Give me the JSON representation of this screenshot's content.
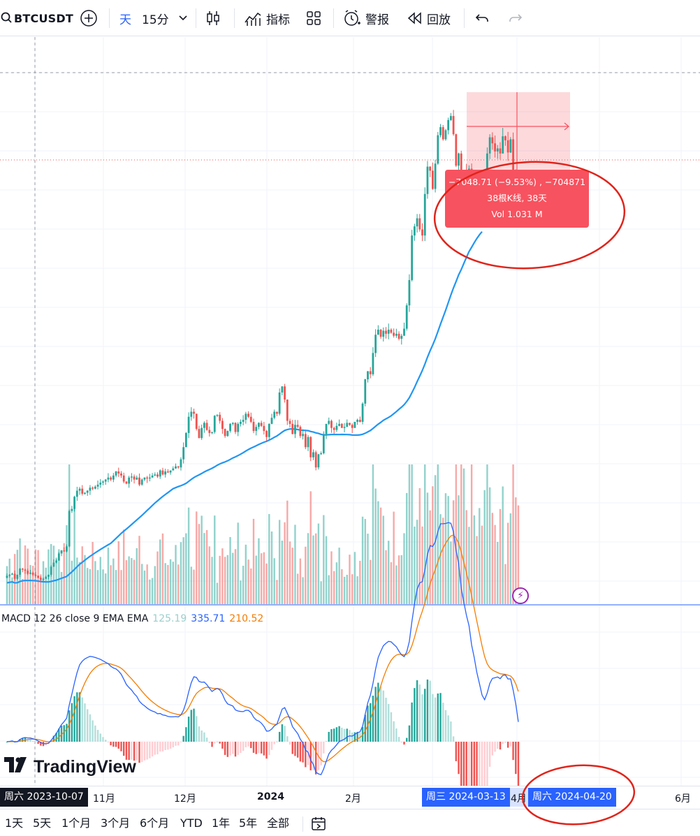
{
  "toolbar": {
    "symbol": "BTCUSDT",
    "interval_day": "天",
    "interval_selected": "15分",
    "indicators_label": "指标",
    "alert_label": "警报",
    "replay_label": "回放"
  },
  "colors": {
    "up": "#26a69a",
    "down": "#ef5350",
    "ma_line": "#2196f3",
    "macd_line": "#2962ff",
    "signal_line": "#f57c00",
    "measure_fill": "#f7525f",
    "annotation": "#e0241b"
  },
  "measure_tooltip": {
    "line1": "−7048.71 (−9.53%) , −704871",
    "line2": "38根K线, 38天",
    "line3": "Vol 1.031 M"
  },
  "macd_legend": {
    "name": "MACD 12 26 close 9 EMA EMA",
    "histogram": "125.19",
    "macd": "335.71",
    "signal": "210.52"
  },
  "logo_text": "TradingView",
  "time_axis": {
    "cursor_date": "周六 2023-10-07",
    "labels": [
      "11月",
      "12月",
      "2024",
      "2月",
      "4月",
      "6月"
    ],
    "range_start": "周三 2024-03-13",
    "range_end": "周六 2024-04-20"
  },
  "range_buttons": [
    "1天",
    "5天",
    "1个月",
    "3个月",
    "6个月",
    "YTD",
    "1年",
    "5年",
    "全部"
  ],
  "chart_data": {
    "type": "candlestick",
    "symbol": "BTCUSDT",
    "x_range": [
      "2023-10-07",
      "2024-04-20"
    ],
    "closes": [
      27800,
      27900,
      28000,
      27500,
      27900,
      28500,
      28400,
      28300,
      28000,
      28100,
      27900,
      27800,
      27600,
      27400,
      27500,
      27700,
      27900,
      28700,
      29100,
      29300,
      30000,
      30300,
      30200,
      30700,
      34200,
      34400,
      35600,
      36200,
      36400,
      35900,
      36000,
      36200,
      36500,
      36400,
      36600,
      36800,
      37000,
      37100,
      37300,
      37500,
      37300,
      37700,
      38100,
      37900,
      37700,
      37100,
      36900,
      37500,
      37600,
      37300,
      37500,
      36800,
      37300,
      37500,
      37400,
      37500,
      37700,
      37800,
      37600,
      38200,
      37800,
      38100,
      38000,
      38200,
      38400,
      38600,
      38500,
      39300,
      40500,
      41900,
      43500,
      44000,
      43800,
      42300,
      41400,
      42400,
      42900,
      42200,
      41900,
      42000,
      43600,
      43700,
      43100,
      42300,
      41600,
      42100,
      42800,
      42900,
      42000,
      42800,
      43000,
      43200,
      43800,
      43500,
      43000,
      42100,
      42500,
      42900,
      42600,
      42100,
      41500,
      42800,
      43400,
      44000,
      43800,
      45900,
      46500,
      45200,
      43100,
      42800,
      41800,
      42700,
      42500,
      41600,
      41800,
      40500,
      41500,
      39500,
      40000,
      38500,
      39800,
      39900,
      41800,
      42800,
      43100,
      42400,
      42200,
      42600,
      42800,
      42400,
      42500,
      42900,
      42700,
      42400,
      43000,
      43200,
      43000,
      44800,
      47200,
      48000,
      47700,
      49800,
      51600,
      52100,
      51400,
      52000,
      51700,
      52100,
      51800,
      51500,
      51700,
      51200,
      51500,
      52200,
      54500,
      57000,
      61400,
      62300,
      63100,
      62000,
      61400,
      65500,
      68200,
      67800,
      66000,
      68500,
      71300,
      72100,
      70900,
      71800,
      72800,
      73200,
      71400,
      68300,
      69500,
      65200,
      67800,
      67600,
      68000,
      64800,
      66000,
      64700,
      65000,
      64400,
      66000,
      69500,
      71100,
      70500,
      69700,
      70000,
      69500,
      71200,
      70800,
      69600,
      70900,
      67400,
      66000,
      63800
    ]
  }
}
